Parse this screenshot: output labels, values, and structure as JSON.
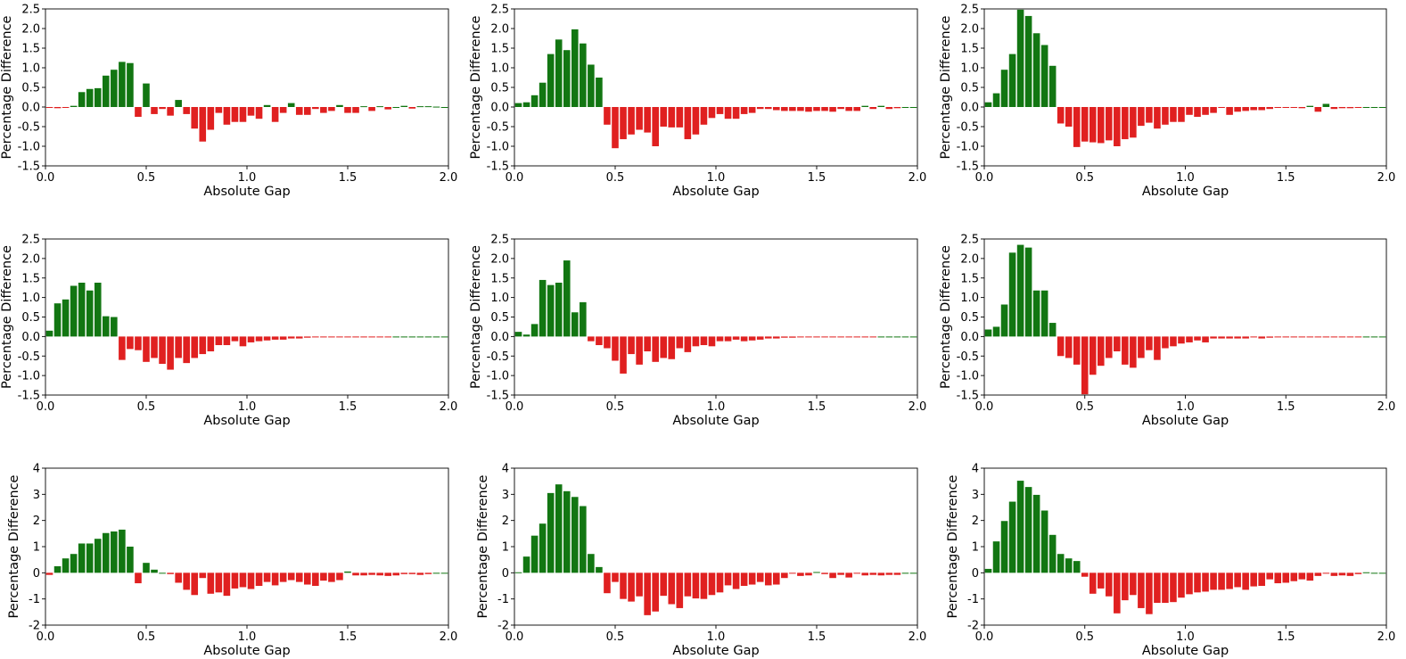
{
  "figure": {
    "positive_color": "#127612",
    "negative_color": "#e02020"
  },
  "chart_data": [
    {
      "type": "bar",
      "panel": "row-1-col-1",
      "xlabel": "Absolute Gap",
      "ylabel": "Percentage Difference",
      "xlim": [
        0.0,
        2.0
      ],
      "ylim": [
        -1.5,
        2.5
      ],
      "xticks": [
        "0.0",
        "0.5",
        "1.0",
        "1.5",
        "2.0"
      ],
      "yticks": [
        "2.5",
        "2.0",
        "1.5",
        "1.0",
        "0.5",
        "0.0",
        "-0.5",
        "-1.0",
        "-1.5"
      ],
      "bin_start": 0.0,
      "bin_width": 0.04,
      "values": [
        -0.02,
        -0.03,
        -0.02,
        0.03,
        0.38,
        0.46,
        0.48,
        0.8,
        0.95,
        1.15,
        1.12,
        -0.25,
        0.6,
        -0.18,
        -0.05,
        -0.22,
        0.18,
        -0.18,
        -0.55,
        -0.88,
        -0.58,
        -0.15,
        -0.45,
        -0.38,
        -0.38,
        -0.22,
        -0.3,
        0.05,
        -0.38,
        -0.15,
        0.1,
        -0.2,
        -0.2,
        -0.05,
        -0.15,
        -0.1,
        0.05,
        -0.15,
        -0.15,
        0.02,
        -0.1,
        0.02,
        -0.06,
        0.0,
        0.03,
        -0.04,
        0.02,
        0.02,
        0.01,
        0.0
      ]
    },
    {
      "type": "bar",
      "panel": "row-1-col-2",
      "xlabel": "Absolute Gap",
      "ylabel": "Percentage Difference",
      "xlim": [
        0.0,
        2.0
      ],
      "ylim": [
        -1.5,
        2.5
      ],
      "xticks": [
        "0.0",
        "0.5",
        "1.0",
        "1.5",
        "2.0"
      ],
      "yticks": [
        "2.5",
        "2.0",
        "1.5",
        "1.0",
        "0.5",
        "0.0",
        "-0.5",
        "-1.0",
        "-1.5"
      ],
      "bin_start": 0.0,
      "bin_width": 0.04,
      "values": [
        0.1,
        0.12,
        0.3,
        0.62,
        1.35,
        1.72,
        1.45,
        1.98,
        1.62,
        1.08,
        0.75,
        -0.45,
        -1.05,
        -0.82,
        -0.7,
        -0.58,
        -0.65,
        -1.0,
        -0.5,
        -0.52,
        -0.52,
        -0.82,
        -0.7,
        -0.45,
        -0.28,
        -0.18,
        -0.3,
        -0.3,
        -0.18,
        -0.15,
        -0.05,
        -0.05,
        -0.08,
        -0.1,
        -0.1,
        -0.1,
        -0.12,
        -0.1,
        -0.1,
        -0.12,
        -0.05,
        -0.1,
        -0.1,
        0.03,
        -0.05,
        0.03,
        -0.05,
        -0.03,
        0.0,
        0.0
      ]
    },
    {
      "type": "bar",
      "panel": "row-1-col-3",
      "xlabel": "Absolute Gap",
      "ylabel": "Percentage Difference",
      "xlim": [
        0.0,
        2.0
      ],
      "ylim": [
        -1.5,
        2.5
      ],
      "xticks": [
        "0.0",
        "0.5",
        "1.0",
        "1.5",
        "2.0"
      ],
      "yticks": [
        "2.5",
        "2.0",
        "1.5",
        "1.0",
        "0.5",
        "0.0",
        "-0.5",
        "-1.0",
        "-1.5"
      ],
      "bin_start": 0.0,
      "bin_width": 0.04,
      "values": [
        0.12,
        0.35,
        0.95,
        1.35,
        2.48,
        2.32,
        1.88,
        1.58,
        1.05,
        -0.42,
        -0.5,
        -1.02,
        -0.88,
        -0.9,
        -0.92,
        -0.85,
        -1.0,
        -0.82,
        -0.78,
        -0.48,
        -0.4,
        -0.55,
        -0.45,
        -0.38,
        -0.38,
        -0.2,
        -0.25,
        -0.2,
        -0.15,
        -0.02,
        -0.2,
        -0.12,
        -0.1,
        -0.08,
        -0.08,
        -0.05,
        -0.02,
        -0.01,
        -0.02,
        -0.03,
        0.03,
        -0.12,
        0.08,
        -0.05,
        -0.03,
        -0.03,
        -0.02,
        0.0,
        0.0,
        0.0
      ]
    },
    {
      "type": "bar",
      "panel": "row-2-col-1",
      "xlabel": "Absolute Gap",
      "ylabel": "Percentage Difference",
      "xlim": [
        0.0,
        2.0
      ],
      "ylim": [
        -1.5,
        2.5
      ],
      "xticks": [
        "0.0",
        "0.5",
        "1.0",
        "1.5",
        "2.0"
      ],
      "yticks": [
        "2.5",
        "2.0",
        "1.5",
        "1.0",
        "0.5",
        "0.0",
        "-0.5",
        "-1.0",
        "-1.5"
      ],
      "bin_start": 0.0,
      "bin_width": 0.04,
      "values": [
        0.15,
        0.85,
        0.95,
        1.3,
        1.38,
        1.18,
        1.38,
        0.52,
        0.5,
        -0.6,
        -0.32,
        -0.35,
        -0.65,
        -0.55,
        -0.7,
        -0.85,
        -0.55,
        -0.68,
        -0.55,
        -0.45,
        -0.38,
        -0.22,
        -0.22,
        -0.12,
        -0.25,
        -0.15,
        -0.12,
        -0.1,
        -0.08,
        -0.08,
        -0.05,
        -0.05,
        -0.03,
        -0.02,
        -0.02,
        -0.02,
        -0.01,
        -0.01,
        -0.01,
        -0.01,
        -0.01,
        -0.01,
        -0.01,
        0.0,
        0.0,
        0.0,
        0.0,
        0.0,
        0.0,
        0.0
      ]
    },
    {
      "type": "bar",
      "panel": "row-2-col-2",
      "xlabel": "Absolute Gap",
      "ylabel": "Percentage Difference",
      "xlim": [
        0.0,
        2.0
      ],
      "ylim": [
        -1.5,
        2.5
      ],
      "xticks": [
        "0.0",
        "0.5",
        "1.0",
        "1.5",
        "2.0"
      ],
      "yticks": [
        "2.5",
        "2.0",
        "1.5",
        "1.0",
        "0.5",
        "0.0",
        "-0.5",
        "-1.0",
        "-1.5"
      ],
      "bin_start": 0.0,
      "bin_width": 0.04,
      "values": [
        0.12,
        0.05,
        0.32,
        1.45,
        1.32,
        1.38,
        1.95,
        0.62,
        0.88,
        -0.12,
        -0.22,
        -0.3,
        -0.62,
        -0.95,
        -0.45,
        -0.72,
        -0.38,
        -0.65,
        -0.55,
        -0.58,
        -0.3,
        -0.4,
        -0.25,
        -0.22,
        -0.25,
        -0.12,
        -0.12,
        -0.08,
        -0.12,
        -0.1,
        -0.08,
        -0.05,
        -0.05,
        -0.03,
        -0.03,
        -0.02,
        -0.02,
        -0.02,
        -0.02,
        -0.01,
        -0.01,
        -0.02,
        -0.02,
        -0.01,
        -0.01,
        0.0,
        0.0,
        0.0,
        0.0,
        0.0
      ]
    },
    {
      "type": "bar",
      "panel": "row-2-col-3",
      "xlabel": "Absolute Gap",
      "ylabel": "Percentage Difference",
      "xlim": [
        0.0,
        2.0
      ],
      "ylim": [
        -1.5,
        2.5
      ],
      "xticks": [
        "0.0",
        "0.5",
        "1.0",
        "1.5",
        "2.0"
      ],
      "yticks": [
        "2.5",
        "2.0",
        "1.5",
        "1.0",
        "0.5",
        "0.0",
        "-0.5",
        "-1.0",
        "-1.5"
      ],
      "bin_start": 0.0,
      "bin_width": 0.04,
      "values": [
        0.18,
        0.25,
        0.82,
        2.15,
        2.35,
        2.28,
        1.18,
        1.18,
        0.35,
        -0.5,
        -0.55,
        -0.72,
        -1.48,
        -0.98,
        -0.75,
        -0.55,
        -0.38,
        -0.72,
        -0.8,
        -0.55,
        -0.35,
        -0.6,
        -0.3,
        -0.25,
        -0.18,
        -0.15,
        -0.1,
        -0.15,
        -0.05,
        -0.05,
        -0.05,
        -0.05,
        -0.05,
        -0.02,
        -0.05,
        -0.03,
        -0.02,
        -0.02,
        -0.02,
        -0.01,
        -0.01,
        -0.01,
        -0.01,
        -0.01,
        -0.01,
        -0.01,
        -0.01,
        0.0,
        0.0,
        0.0
      ]
    },
    {
      "type": "bar",
      "panel": "row-3-col-1",
      "xlabel": "Absolute Gap",
      "ylabel": "Percentage Difference",
      "xlim": [
        0.0,
        2.0
      ],
      "ylim": [
        -2,
        4
      ],
      "xticks": [
        "0.0",
        "0.5",
        "1.0",
        "1.5",
        "2.0"
      ],
      "yticks": [
        "4",
        "3",
        "2",
        "1",
        "0",
        "-1",
        "-2"
      ],
      "bin_start": 0.0,
      "bin_width": 0.04,
      "values": [
        -0.08,
        0.25,
        0.55,
        0.72,
        1.12,
        1.12,
        1.3,
        1.52,
        1.58,
        1.65,
        1.0,
        -0.4,
        0.38,
        0.12,
        0.0,
        -0.05,
        -0.38,
        -0.65,
        -0.85,
        -0.2,
        -0.8,
        -0.75,
        -0.88,
        -0.6,
        -0.55,
        -0.62,
        -0.5,
        -0.35,
        -0.48,
        -0.35,
        -0.28,
        -0.35,
        -0.45,
        -0.5,
        -0.3,
        -0.35,
        -0.28,
        0.05,
        -0.1,
        -0.1,
        -0.08,
        -0.1,
        -0.12,
        -0.1,
        -0.05,
        -0.05,
        -0.08,
        -0.05,
        0.0,
        0.0
      ]
    },
    {
      "type": "bar",
      "panel": "row-3-col-2",
      "xlabel": "Absolute Gap",
      "ylabel": "Percentage Difference",
      "xlim": [
        0.0,
        2.0
      ],
      "ylim": [
        -2,
        4
      ],
      "xticks": [
        "0.0",
        "0.5",
        "1.0",
        "1.5",
        "2.0"
      ],
      "yticks": [
        "4",
        "3",
        "2",
        "1",
        "0",
        "-1",
        "-2"
      ],
      "bin_start": 0.0,
      "bin_width": 0.04,
      "values": [
        0.02,
        0.62,
        1.42,
        1.88,
        3.05,
        3.38,
        3.12,
        2.9,
        2.55,
        0.72,
        0.22,
        -0.78,
        -0.35,
        -1.0,
        -1.1,
        -0.9,
        -1.62,
        -1.48,
        -0.88,
        -1.2,
        -1.35,
        -0.9,
        -0.98,
        -1.0,
        -0.85,
        -0.75,
        -0.48,
        -0.62,
        -0.5,
        -0.45,
        -0.35,
        -0.48,
        -0.45,
        -0.2,
        -0.02,
        -0.12,
        -0.1,
        0.03,
        -0.05,
        -0.2,
        -0.08,
        -0.18,
        -0.02,
        -0.1,
        -0.08,
        -0.1,
        -0.08,
        -0.08,
        0.0,
        0.0
      ]
    },
    {
      "type": "bar",
      "panel": "row-3-col-3",
      "xlabel": "Absolute Gap",
      "ylabel": "Percentage Difference",
      "xlim": [
        0.0,
        2.0
      ],
      "ylim": [
        -2,
        4
      ],
      "xticks": [
        "0.0",
        "0.5",
        "1.0",
        "1.5",
        "2.0"
      ],
      "yticks": [
        "4",
        "3",
        "2",
        "1",
        "0",
        "-1",
        "-2"
      ],
      "bin_start": 0.0,
      "bin_width": 0.04,
      "values": [
        0.15,
        1.2,
        1.98,
        2.72,
        3.52,
        3.28,
        2.98,
        2.38,
        1.45,
        0.72,
        0.55,
        0.45,
        -0.15,
        -0.8,
        -0.6,
        -0.9,
        -1.55,
        -1.05,
        -0.85,
        -1.35,
        -1.58,
        -1.15,
        -1.15,
        -1.12,
        -0.95,
        -0.82,
        -0.75,
        -0.72,
        -0.65,
        -0.65,
        -0.62,
        -0.55,
        -0.65,
        -0.52,
        -0.5,
        -0.25,
        -0.4,
        -0.38,
        -0.32,
        -0.25,
        -0.3,
        -0.12,
        -0.03,
        -0.12,
        -0.1,
        -0.12,
        -0.05,
        0.02,
        0.0,
        0.0
      ]
    }
  ]
}
